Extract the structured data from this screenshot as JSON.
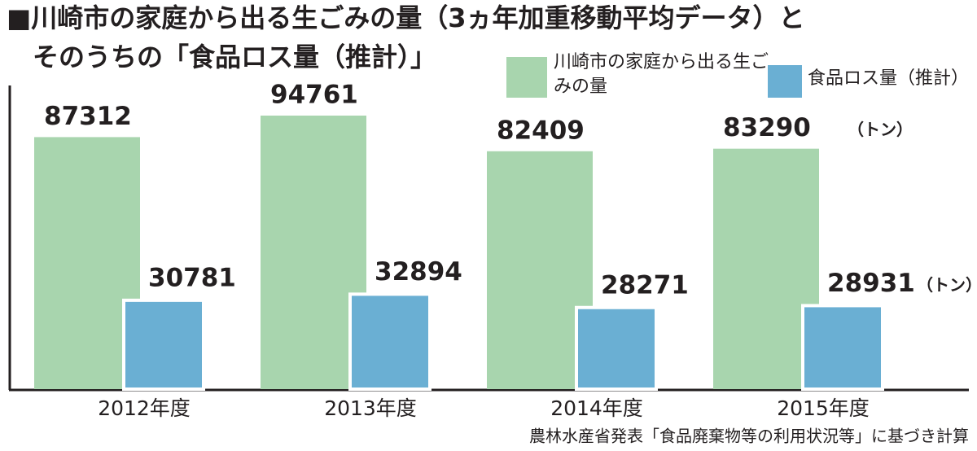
{
  "chart_data": {
    "type": "bar",
    "title": "■川崎市の家庭から出る生ごみの量（3ヵ年加重移動平均データ）と",
    "subtitle": "そのうちの「食品ロス量（推計）」",
    "unit": "（トン）",
    "source": "農林水産省発表「食品廃棄物等の利用状況等」に基づき計算",
    "categories": [
      "2012年度",
      "2013年度",
      "2014年度",
      "2015年度"
    ],
    "series": [
      {
        "name": "川崎市の家庭から出る生ごみの量",
        "color": "#a8d5ae",
        "values": [
          87312,
          94761,
          82409,
          83290
        ]
      },
      {
        "name": "食品ロス量（推計）",
        "color": "#6aafd3",
        "values": [
          30781,
          32894,
          28271,
          28931
        ]
      }
    ]
  }
}
